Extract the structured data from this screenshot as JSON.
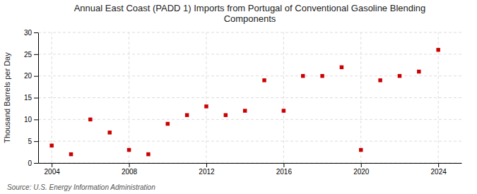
{
  "chart_data": {
    "type": "scatter",
    "title": "Annual East Coast (PADD 1) Imports from Portugal of Conventional Gasoline Blending\nComponents",
    "ylabel": "Thousand Barrels per Day",
    "annotation": "Source: U.S. Energy Information Administration",
    "x": [
      2004,
      2005,
      2006,
      2007,
      2008,
      2009,
      2010,
      2011,
      2012,
      2013,
      2014,
      2015,
      2016,
      2017,
      2018,
      2019,
      2020,
      2021,
      2022,
      2023,
      2024
    ],
    "values": [
      4.0,
      2.0,
      10.0,
      7.0,
      3.0,
      2.0,
      9.0,
      11.0,
      13.0,
      11.0,
      12.0,
      19.0,
      12.0,
      20.0,
      20.0,
      22.0,
      3.0,
      19.0,
      20.0,
      21.0,
      26.0
    ],
    "color": "#cc0000",
    "marker": "square",
    "xlim": [
      2003.3,
      2025.2
    ],
    "xticks": [
      2004,
      2008,
      2012,
      2016,
      2020,
      2024
    ],
    "ylim": [
      0,
      30
    ],
    "yticks": [
      0,
      5,
      10,
      15,
      20,
      25,
      30
    ],
    "grid": true
  }
}
